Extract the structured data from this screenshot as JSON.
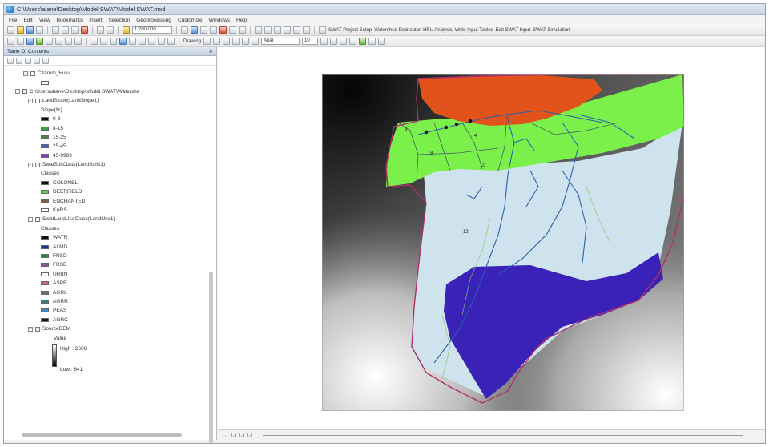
{
  "window": {
    "title": "C:\\Users\\alane\\Desktop\\Model SWAT\\Model SWAT.mxd"
  },
  "menu": [
    "File",
    "Edit",
    "View",
    "Bookmarks",
    "Insert",
    "Selection",
    "Geoprocessing",
    "Customize",
    "Windows",
    "Help"
  ],
  "toolbar": {
    "scale": "1:200.000",
    "drawing_label": "Drawing",
    "font_name": "Arial",
    "font_size": "10",
    "swat_project_setup": "SWAT Project Setup",
    "watershed_delineator": "Watershed Delineator",
    "hru_analysis": "HRU Analysis",
    "write_input_tables": "Write Input Tables",
    "edit_swat_input": "Edit SWAT Input",
    "swat_simulation": "SWAT Simulation"
  },
  "toc": {
    "title": "Table Of Contents",
    "close": "✕",
    "layers": {
      "citarum_hulu": "Citarum_Hulu",
      "watershed_group": "C:\\Users\\alane\\Desktop\\Model SWAT\\Watershe",
      "land_slope": "LandSlope(LandSlope1)",
      "slope_heading": "Slope(%)",
      "slope_classes": [
        {
          "label": "0-8",
          "color": "#111111"
        },
        {
          "label": "8-15",
          "color": "#3aa53a"
        },
        {
          "label": "15-25",
          "color": "#5a7a4a"
        },
        {
          "label": "25-45",
          "color": "#3f5fb5"
        },
        {
          "label": "45-9999",
          "color": "#8a3ab0"
        }
      ],
      "soil": "SwatSoilClass(LandSoils1)",
      "soil_heading": "Classes",
      "soil_classes": [
        {
          "label": "COLONEL",
          "color": "#111111"
        },
        {
          "label": "DEERFIELD",
          "color": "#74c46a"
        },
        {
          "label": "ENCHANTED",
          "color": "#8a5a45"
        },
        {
          "label": "KARS",
          "color": "#ffffff"
        }
      ],
      "landuse": "SwatLandUseClass(LandUse1)",
      "landuse_heading": "Classes",
      "landuse_classes": [
        {
          "label": "WATR",
          "color": "#111111"
        },
        {
          "label": "ALMD",
          "color": "#1f2f9a"
        },
        {
          "label": "FRSD",
          "color": "#2f8a3a"
        },
        {
          "label": "FRSE",
          "color": "#8c5a8c"
        },
        {
          "label": "URBN",
          "color": "#ffffff"
        },
        {
          "label": "ASPR",
          "color": "#c86a7a"
        },
        {
          "label": "AGRL",
          "color": "#7a6a5a"
        },
        {
          "label": "AGRR",
          "color": "#3a7a7a"
        },
        {
          "label": "PEAS",
          "color": "#3a8ac8"
        },
        {
          "label": "AGRC",
          "color": "#1a1a1a"
        }
      ],
      "dem": "SourceDEM",
      "dem_value": "Value",
      "dem_high": "High : 2606",
      "dem_low": "Low : 641"
    }
  },
  "map": {
    "subbasin_labels": [
      "3",
      "4",
      "8",
      "10",
      "12"
    ],
    "colors": {
      "landuse_orange": "#e2531c",
      "landuse_green": "#7cf04a",
      "landuse_lightblue": "#cfe3ee",
      "landuse_purple": "#3a21b8",
      "boundary": "#b0306a",
      "rivers": "#2a5fb0"
    }
  }
}
